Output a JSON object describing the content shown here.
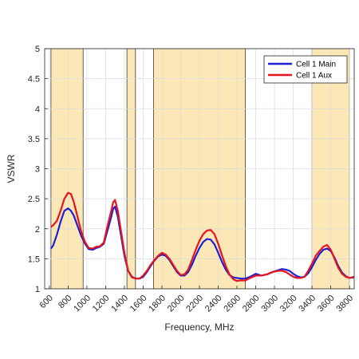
{
  "chart_data": {
    "type": "line",
    "xlabel": "Frequency, MHz",
    "ylabel": "VSWR",
    "xlim": [
      550,
      3850
    ],
    "ylim": [
      1,
      5
    ],
    "xticks": [
      600,
      800,
      1000,
      1200,
      1400,
      1600,
      1800,
      2000,
      2200,
      2400,
      2600,
      2800,
      3000,
      3200,
      3400,
      3600,
      3800
    ],
    "yticks": [
      1,
      1.5,
      2,
      2.5,
      3,
      3.5,
      4,
      4.5,
      5
    ],
    "ytick_labels": [
      "1",
      "1.5",
      "2",
      "2.5",
      "3",
      "3.5",
      "4",
      "4.5",
      "5"
    ],
    "grid": true,
    "legend_position": "top-right",
    "highlight_bands": [
      [
        617,
        960
      ],
      [
        1427,
        1518
      ],
      [
        1710,
        2690
      ],
      [
        3400,
        3800
      ]
    ],
    "colors": {
      "band_fill": "#fbe8b6",
      "band_edge": "#3a3a3a",
      "grid": "#dcdcdc",
      "axis": "#262626"
    },
    "series": [
      {
        "name": "Cell 1 Main",
        "color": "#1f1fd6",
        "x": [
          617,
          640,
          680,
          720,
          760,
          800,
          830,
          860,
          900,
          940,
          980,
          1020,
          1060,
          1100,
          1140,
          1180,
          1220,
          1260,
          1280,
          1300,
          1330,
          1360,
          1400,
          1440,
          1480,
          1520,
          1560,
          1600,
          1640,
          1680,
          1720,
          1760,
          1800,
          1840,
          1880,
          1920,
          1960,
          2000,
          2040,
          2080,
          2120,
          2160,
          2200,
          2240,
          2280,
          2320,
          2360,
          2400,
          2440,
          2480,
          2520,
          2560,
          2600,
          2640,
          2690,
          2740,
          2800,
          2860,
          2920,
          2980,
          3040,
          3080,
          3120,
          3160,
          3200,
          3240,
          3280,
          3320,
          3360,
          3400,
          3440,
          3480,
          3520,
          3560,
          3600,
          3640,
          3680,
          3720,
          3760,
          3800,
          3850
        ],
        "y": [
          1.67,
          1.72,
          1.9,
          2.12,
          2.3,
          2.34,
          2.3,
          2.22,
          2.05,
          1.88,
          1.75,
          1.66,
          1.65,
          1.68,
          1.7,
          1.75,
          1.97,
          2.2,
          2.33,
          2.37,
          2.2,
          1.92,
          1.55,
          1.3,
          1.2,
          1.17,
          1.17,
          1.2,
          1.28,
          1.38,
          1.47,
          1.54,
          1.57,
          1.55,
          1.48,
          1.38,
          1.28,
          1.22,
          1.22,
          1.28,
          1.4,
          1.55,
          1.68,
          1.78,
          1.83,
          1.82,
          1.74,
          1.6,
          1.45,
          1.32,
          1.23,
          1.19,
          1.18,
          1.17,
          1.17,
          1.2,
          1.25,
          1.22,
          1.24,
          1.28,
          1.31,
          1.33,
          1.32,
          1.3,
          1.25,
          1.21,
          1.19,
          1.2,
          1.26,
          1.36,
          1.48,
          1.58,
          1.65,
          1.67,
          1.63,
          1.52,
          1.38,
          1.27,
          1.21,
          1.18,
          1.19
        ]
      },
      {
        "name": "Cell 1 Aux",
        "color": "#e8141c",
        "x": [
          617,
          640,
          680,
          720,
          760,
          800,
          830,
          860,
          900,
          940,
          980,
          1020,
          1060,
          1100,
          1140,
          1180,
          1220,
          1260,
          1280,
          1300,
          1330,
          1360,
          1400,
          1440,
          1480,
          1520,
          1560,
          1600,
          1640,
          1680,
          1720,
          1760,
          1800,
          1840,
          1880,
          1920,
          1960,
          2000,
          2040,
          2080,
          2120,
          2160,
          2200,
          2240,
          2280,
          2320,
          2360,
          2400,
          2440,
          2480,
          2520,
          2560,
          2600,
          2640,
          2690,
          2740,
          2800,
          2860,
          2920,
          2980,
          3040,
          3080,
          3120,
          3160,
          3200,
          3240,
          3280,
          3320,
          3360,
          3400,
          3440,
          3480,
          3520,
          3560,
          3600,
          3640,
          3680,
          3720,
          3760,
          3800,
          3850
        ],
        "y": [
          2.03,
          2.06,
          2.13,
          2.3,
          2.5,
          2.6,
          2.58,
          2.45,
          2.2,
          1.95,
          1.78,
          1.68,
          1.67,
          1.7,
          1.71,
          1.77,
          2.05,
          2.3,
          2.44,
          2.48,
          2.3,
          2.0,
          1.6,
          1.3,
          1.19,
          1.17,
          1.17,
          1.22,
          1.3,
          1.4,
          1.48,
          1.55,
          1.6,
          1.57,
          1.5,
          1.4,
          1.3,
          1.23,
          1.24,
          1.32,
          1.48,
          1.65,
          1.8,
          1.91,
          1.97,
          1.98,
          1.91,
          1.75,
          1.56,
          1.38,
          1.24,
          1.16,
          1.13,
          1.14,
          1.14,
          1.18,
          1.22,
          1.22,
          1.24,
          1.28,
          1.3,
          1.3,
          1.28,
          1.24,
          1.2,
          1.18,
          1.18,
          1.2,
          1.3,
          1.42,
          1.55,
          1.63,
          1.7,
          1.73,
          1.65,
          1.5,
          1.35,
          1.25,
          1.2,
          1.18,
          1.2
        ]
      }
    ]
  }
}
